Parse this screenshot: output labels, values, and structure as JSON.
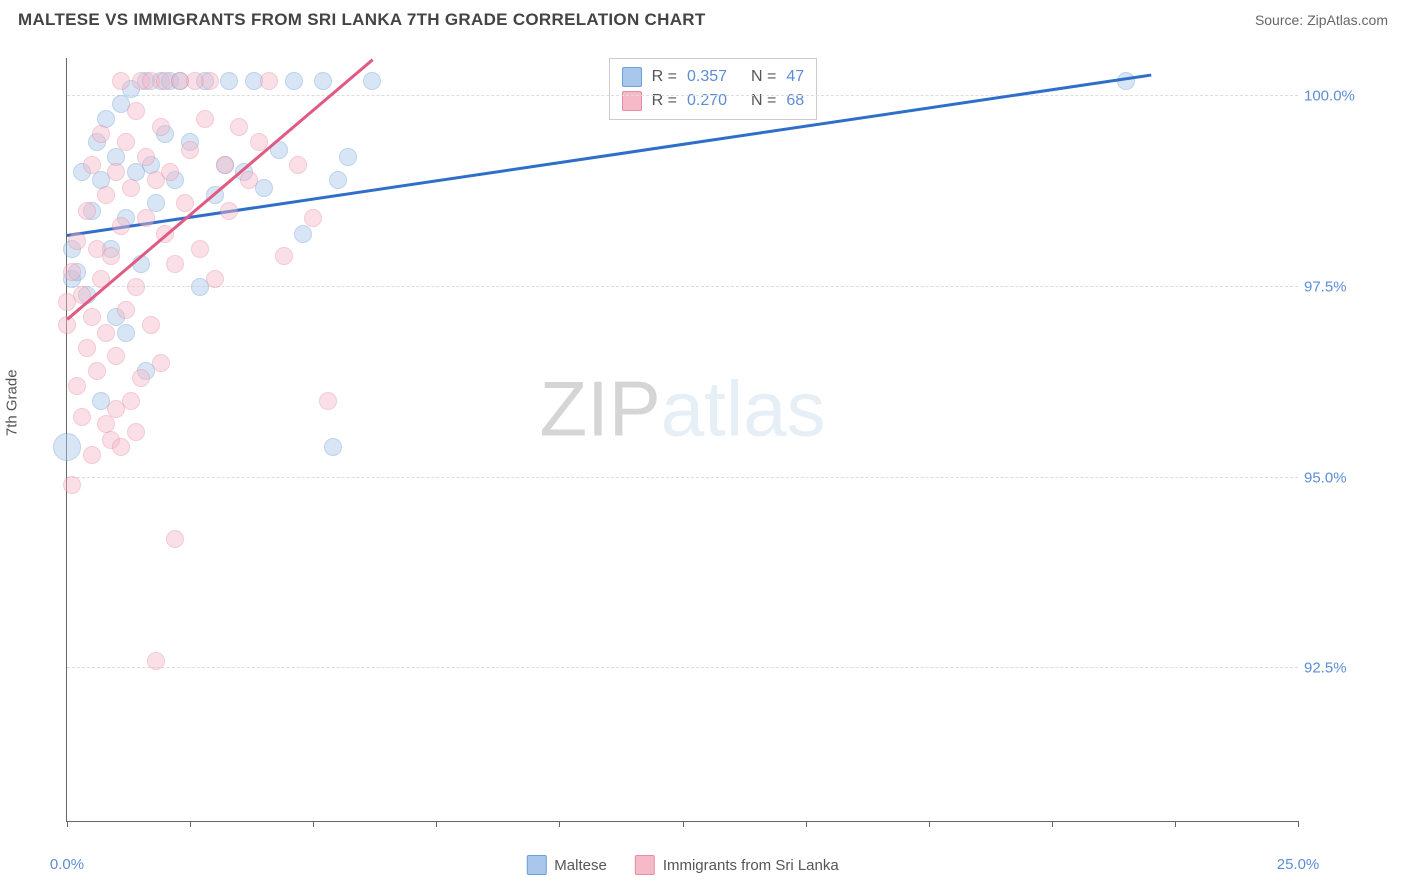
{
  "header": {
    "title": "MALTESE VS IMMIGRANTS FROM SRI LANKA 7TH GRADE CORRELATION CHART",
    "source": "Source: ZipAtlas.com"
  },
  "chart": {
    "type": "scatter",
    "ylabel": "7th Grade",
    "xlim": [
      0,
      25
    ],
    "ylim": [
      90.5,
      100.5
    ],
    "yticks": [
      {
        "value": 92.5,
        "label": "92.5%"
      },
      {
        "value": 95.0,
        "label": "95.0%"
      },
      {
        "value": 97.5,
        "label": "97.5%"
      },
      {
        "value": 100.0,
        "label": "100.0%"
      }
    ],
    "xticks_marks": [
      0,
      2.5,
      5,
      7.5,
      10,
      12.5,
      15,
      17.5,
      20,
      22.5,
      25
    ],
    "xticks_labels": [
      {
        "value": 0,
        "label": "0.0%"
      },
      {
        "value": 25,
        "label": "25.0%"
      }
    ],
    "gridline_color": "#dddddd",
    "axis_color": "#666666",
    "point_radius": 9,
    "point_opacity": 0.45,
    "series": [
      {
        "name": "Maltese",
        "color_fill": "#a9c7ea",
        "color_stroke": "#6d9fd9",
        "trend_color": "#2f6fc9",
        "trend": {
          "x1": 0,
          "y1": 98.2,
          "x2": 22,
          "y2": 100.3
        },
        "stats": {
          "r": "0.357",
          "n": "47"
        },
        "points": [
          {
            "x": 0.0,
            "y": 95.4,
            "r": 14
          },
          {
            "x": 0.1,
            "y": 97.6
          },
          {
            "x": 0.1,
            "y": 98.0
          },
          {
            "x": 0.2,
            "y": 97.7
          },
          {
            "x": 0.3,
            "y": 99.0
          },
          {
            "x": 0.4,
            "y": 97.4
          },
          {
            "x": 0.5,
            "y": 98.5
          },
          {
            "x": 0.6,
            "y": 99.4
          },
          {
            "x": 0.7,
            "y": 98.9
          },
          {
            "x": 0.8,
            "y": 99.7
          },
          {
            "x": 0.9,
            "y": 98.0
          },
          {
            "x": 1.0,
            "y": 99.2
          },
          {
            "x": 1.0,
            "y": 97.1
          },
          {
            "x": 1.1,
            "y": 99.9
          },
          {
            "x": 1.2,
            "y": 98.4
          },
          {
            "x": 1.3,
            "y": 100.1
          },
          {
            "x": 1.4,
            "y": 99.0
          },
          {
            "x": 1.5,
            "y": 97.8
          },
          {
            "x": 1.6,
            "y": 100.2
          },
          {
            "x": 1.7,
            "y": 99.1
          },
          {
            "x": 1.8,
            "y": 98.6
          },
          {
            "x": 1.9,
            "y": 100.2
          },
          {
            "x": 2.0,
            "y": 99.5
          },
          {
            "x": 2.1,
            "y": 100.2
          },
          {
            "x": 2.2,
            "y": 98.9
          },
          {
            "x": 2.3,
            "y": 100.2
          },
          {
            "x": 2.5,
            "y": 99.4
          },
          {
            "x": 2.7,
            "y": 97.5
          },
          {
            "x": 2.8,
            "y": 100.2
          },
          {
            "x": 3.0,
            "y": 98.7
          },
          {
            "x": 3.2,
            "y": 99.1
          },
          {
            "x": 3.3,
            "y": 100.2
          },
          {
            "x": 3.6,
            "y": 99.0
          },
          {
            "x": 3.8,
            "y": 100.2
          },
          {
            "x": 4.0,
            "y": 98.8
          },
          {
            "x": 4.3,
            "y": 99.3
          },
          {
            "x": 4.6,
            "y": 100.2
          },
          {
            "x": 4.8,
            "y": 98.2
          },
          {
            "x": 5.2,
            "y": 100.2
          },
          {
            "x": 5.4,
            "y": 95.4
          },
          {
            "x": 5.5,
            "y": 98.9
          },
          {
            "x": 5.7,
            "y": 99.2
          },
          {
            "x": 6.2,
            "y": 100.2
          },
          {
            "x": 1.2,
            "y": 96.9
          },
          {
            "x": 1.6,
            "y": 96.4
          },
          {
            "x": 0.7,
            "y": 96.0
          },
          {
            "x": 21.5,
            "y": 100.2
          }
        ]
      },
      {
        "name": "Immigrants from Sri Lanka",
        "color_fill": "#f5b9c8",
        "color_stroke": "#e88ba4",
        "trend_color": "#e05a84",
        "trend": {
          "x1": 0,
          "y1": 97.1,
          "x2": 6.2,
          "y2": 100.5
        },
        "stats": {
          "r": "0.270",
          "n": "68"
        },
        "points": [
          {
            "x": 0.0,
            "y": 97.3
          },
          {
            "x": 0.0,
            "y": 97.0
          },
          {
            "x": 0.1,
            "y": 94.9
          },
          {
            "x": 0.1,
            "y": 97.7
          },
          {
            "x": 0.2,
            "y": 96.2
          },
          {
            "x": 0.2,
            "y": 98.1
          },
          {
            "x": 0.3,
            "y": 95.8
          },
          {
            "x": 0.3,
            "y": 97.4
          },
          {
            "x": 0.4,
            "y": 96.7
          },
          {
            "x": 0.4,
            "y": 98.5
          },
          {
            "x": 0.5,
            "y": 97.1
          },
          {
            "x": 0.5,
            "y": 99.1
          },
          {
            "x": 0.6,
            "y": 96.4
          },
          {
            "x": 0.6,
            "y": 98.0
          },
          {
            "x": 0.7,
            "y": 97.6
          },
          {
            "x": 0.7,
            "y": 99.5
          },
          {
            "x": 0.8,
            "y": 96.9
          },
          {
            "x": 0.8,
            "y": 98.7
          },
          {
            "x": 0.9,
            "y": 95.5
          },
          {
            "x": 0.9,
            "y": 97.9
          },
          {
            "x": 1.0,
            "y": 99.0
          },
          {
            "x": 1.0,
            "y": 96.6
          },
          {
            "x": 1.1,
            "y": 98.3
          },
          {
            "x": 1.1,
            "y": 100.2
          },
          {
            "x": 1.2,
            "y": 97.2
          },
          {
            "x": 1.2,
            "y": 99.4
          },
          {
            "x": 1.3,
            "y": 96.0
          },
          {
            "x": 1.3,
            "y": 98.8
          },
          {
            "x": 1.4,
            "y": 99.8
          },
          {
            "x": 1.4,
            "y": 97.5
          },
          {
            "x": 1.5,
            "y": 100.2
          },
          {
            "x": 1.5,
            "y": 96.3
          },
          {
            "x": 1.6,
            "y": 98.4
          },
          {
            "x": 1.6,
            "y": 99.2
          },
          {
            "x": 1.7,
            "y": 97.0
          },
          {
            "x": 1.7,
            "y": 100.2
          },
          {
            "x": 1.8,
            "y": 98.9
          },
          {
            "x": 1.9,
            "y": 96.5
          },
          {
            "x": 1.9,
            "y": 99.6
          },
          {
            "x": 2.0,
            "y": 98.2
          },
          {
            "x": 2.0,
            "y": 100.2
          },
          {
            "x": 1.8,
            "y": 92.6
          },
          {
            "x": 2.1,
            "y": 99.0
          },
          {
            "x": 2.2,
            "y": 97.8
          },
          {
            "x": 2.2,
            "y": 94.2
          },
          {
            "x": 2.3,
            "y": 100.2
          },
          {
            "x": 2.4,
            "y": 98.6
          },
          {
            "x": 2.5,
            "y": 99.3
          },
          {
            "x": 2.6,
            "y": 100.2
          },
          {
            "x": 2.7,
            "y": 98.0
          },
          {
            "x": 2.8,
            "y": 99.7
          },
          {
            "x": 2.9,
            "y": 100.2
          },
          {
            "x": 3.0,
            "y": 97.6
          },
          {
            "x": 3.2,
            "y": 99.1
          },
          {
            "x": 3.3,
            "y": 98.5
          },
          {
            "x": 3.5,
            "y": 99.6
          },
          {
            "x": 3.7,
            "y": 98.9
          },
          {
            "x": 3.9,
            "y": 99.4
          },
          {
            "x": 4.1,
            "y": 100.2
          },
          {
            "x": 4.4,
            "y": 97.9
          },
          {
            "x": 4.7,
            "y": 99.1
          },
          {
            "x": 5.0,
            "y": 98.4
          },
          {
            "x": 5.3,
            "y": 96.0
          },
          {
            "x": 0.5,
            "y": 95.3
          },
          {
            "x": 0.8,
            "y": 95.7
          },
          {
            "x": 1.0,
            "y": 95.9
          },
          {
            "x": 1.1,
            "y": 95.4
          },
          {
            "x": 1.4,
            "y": 95.6
          }
        ]
      }
    ],
    "stats_box": {
      "left_pct": 44,
      "top_pct": 0
    },
    "legend": {
      "series1": "Maltese",
      "series2": "Immigrants from Sri Lanka"
    },
    "watermark": {
      "part1": "ZIP",
      "part2": "atlas",
      "color1": "#8a8a8a",
      "color2": "#b9cfe8",
      "opacity": 0.35
    }
  }
}
